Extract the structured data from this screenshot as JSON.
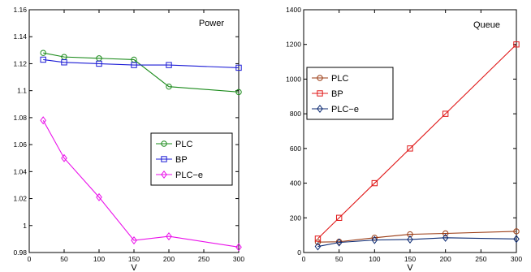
{
  "chart_data": [
    {
      "type": "line",
      "title": "Power",
      "xlabel": "V",
      "ylabel": "",
      "x": [
        20,
        50,
        100,
        150,
        200,
        300
      ],
      "xlim": [
        0,
        300
      ],
      "ylim": [
        0.98,
        1.16
      ],
      "xticks": [
        "0",
        "50",
        "100",
        "150",
        "200",
        "250",
        "300"
      ],
      "yticks": [
        "0.98",
        "1",
        "1.02",
        "1.04",
        "1.06",
        "1.08",
        "1.1",
        "1.12",
        "1.14",
        "1.16"
      ],
      "grid": false,
      "legend_position": "center-right",
      "series": [
        {
          "name": "PLC",
          "color": "#1a8a1a",
          "marker": "circle",
          "values": [
            1.128,
            1.125,
            1.124,
            1.123,
            1.103,
            1.099
          ]
        },
        {
          "name": "BP",
          "color": "#1c1cd6",
          "marker": "square",
          "values": [
            1.123,
            1.121,
            1.12,
            1.119,
            1.119,
            1.117
          ]
        },
        {
          "name": "PLC−e",
          "color": "#ea10ea",
          "marker": "diamond",
          "values": [
            1.078,
            1.05,
            1.021,
            0.989,
            0.992,
            0.984
          ]
        }
      ]
    },
    {
      "type": "line",
      "title": "Queue",
      "xlabel": "V",
      "ylabel": "",
      "x": [
        20,
        50,
        100,
        150,
        200,
        300
      ],
      "xlim": [
        0,
        300
      ],
      "ylim": [
        0,
        1400
      ],
      "xticks": [
        "0",
        "50",
        "100",
        "150",
        "200",
        "250",
        "300"
      ],
      "yticks": [
        "0",
        "200",
        "400",
        "600",
        "800",
        "1000",
        "1200",
        "1400"
      ],
      "grid": false,
      "legend_position": "upper-left",
      "series": [
        {
          "name": "PLC",
          "color": "#9a3a12",
          "marker": "circle",
          "values": [
            60,
            62,
            85,
            105,
            110,
            122
          ]
        },
        {
          "name": "BP",
          "color": "#e01818",
          "marker": "square",
          "values": [
            80,
            200,
            400,
            600,
            800,
            1200
          ]
        },
        {
          "name": "PLC−e",
          "color": "#0c2a72",
          "marker": "diamond",
          "values": [
            35,
            58,
            72,
            75,
            85,
            78
          ]
        }
      ]
    }
  ]
}
